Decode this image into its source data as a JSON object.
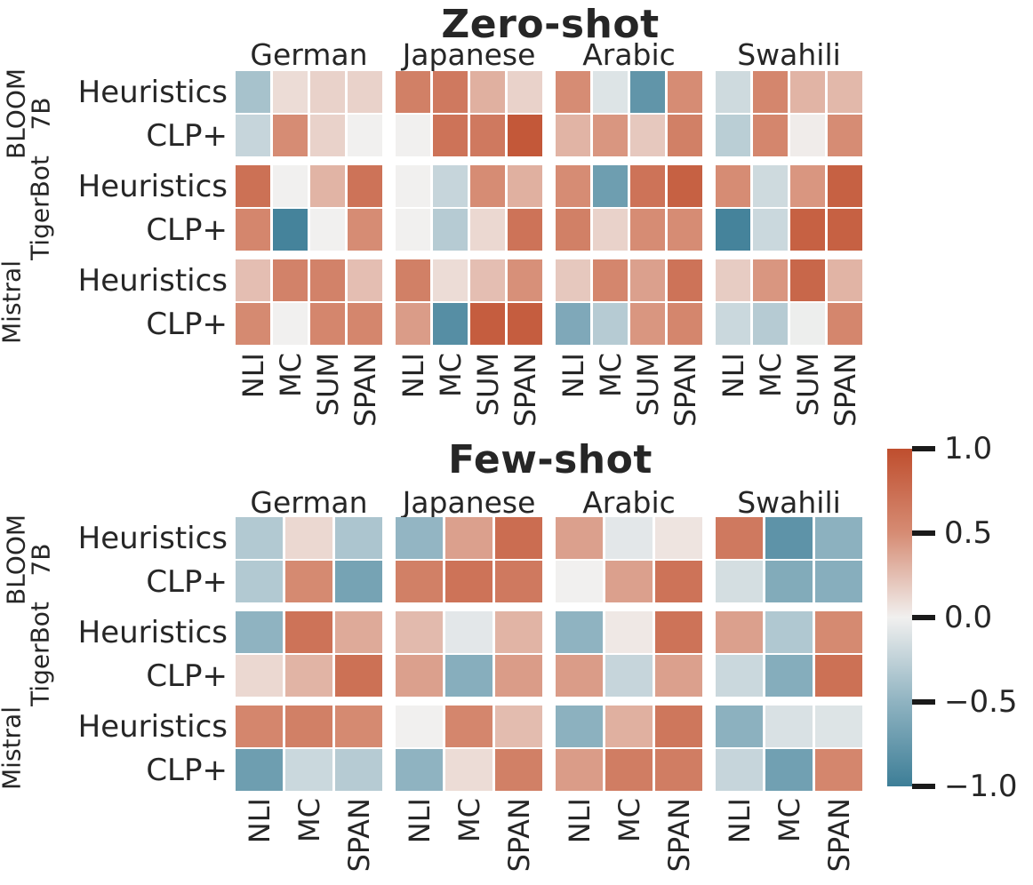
{
  "figure_title": "",
  "colors": {
    "positive_end": "#bf4e2e",
    "positive_half": "#d68c74",
    "midpoint": "#f1f0ef",
    "negative_half": "#8fb3c1",
    "negative_end": "#3d7e97",
    "tick": "#1a1a1a",
    "text": "#262626",
    "background": "#ffffff"
  },
  "models": [
    {
      "name": "BLOOM 7B",
      "label_lines": [
        "BLOOM",
        "7B"
      ]
    },
    {
      "name": "TigerBot",
      "label_lines": [
        "TigerBot"
      ]
    },
    {
      "name": "Mistral",
      "label_lines": [
        "Mistral"
      ]
    }
  ],
  "methods": [
    "Heuristics",
    "CLP+"
  ],
  "colorbar": {
    "vmin": -1.0,
    "vmax": 1.0,
    "tick_values": [
      1.0,
      0.5,
      0.0,
      -0.5,
      -1.0
    ],
    "tick_labels": [
      "1.0",
      "0.5",
      "0.0",
      "−0.5",
      "−1.0"
    ]
  },
  "chart_data": [
    {
      "type": "heatmap",
      "title": "Zero-shot",
      "col_groups": [
        "German",
        "Japanese",
        "Arabic",
        "Swahili"
      ],
      "col_labels": [
        "NLI",
        "MC",
        "SUM",
        "SPAN"
      ],
      "row_groups": [
        "BLOOM 7B",
        "TigerBot",
        "Mistral"
      ],
      "row_labels": [
        "Heuristics",
        "CLP+",
        "Heuristics",
        "CLP+",
        "Heuristics",
        "CLP+"
      ],
      "vmin": -1.0,
      "vmax": 1.0,
      "values": [
        [
          -0.38,
          0.1,
          0.15,
          0.15,
          0.6,
          0.65,
          0.32,
          0.15,
          0.5,
          -0.1,
          -0.78,
          0.5,
          -0.18,
          0.55,
          0.3,
          0.28
        ],
        [
          -0.22,
          0.5,
          0.15,
          0.0,
          0.0,
          0.7,
          0.65,
          0.92,
          0.3,
          0.45,
          0.2,
          0.6,
          -0.28,
          0.55,
          0.02,
          0.5
        ],
        [
          0.72,
          0.0,
          0.3,
          0.7,
          0.0,
          -0.22,
          0.5,
          0.32,
          0.5,
          -0.7,
          0.7,
          0.85,
          0.5,
          -0.18,
          0.45,
          0.85
        ],
        [
          0.55,
          -0.95,
          0.0,
          0.5,
          0.0,
          -0.3,
          0.12,
          0.7,
          0.6,
          0.15,
          0.5,
          0.5,
          -0.95,
          -0.2,
          0.85,
          0.85
        ],
        [
          0.25,
          0.58,
          0.58,
          0.25,
          0.6,
          0.1,
          0.25,
          0.48,
          0.2,
          0.55,
          0.4,
          0.7,
          0.18,
          0.45,
          0.8,
          0.3
        ],
        [
          0.52,
          0.0,
          0.55,
          0.55,
          0.42,
          -0.85,
          0.88,
          0.88,
          -0.6,
          -0.3,
          0.45,
          0.55,
          -0.2,
          -0.3,
          -0.02,
          0.55
        ]
      ]
    },
    {
      "type": "heatmap",
      "title": "Few-shot",
      "col_groups": [
        "German",
        "Japanese",
        "Arabic",
        "Swahili"
      ],
      "col_labels": [
        "NLI",
        "MC",
        "SPAN"
      ],
      "row_groups": [
        "BLOOM 7B",
        "TigerBot",
        "Mistral"
      ],
      "row_labels": [
        "Heuristics",
        "CLP+",
        "Heuristics",
        "CLP+",
        "Heuristics",
        "CLP+"
      ],
      "vmin": -1.0,
      "vmax": 1.0,
      "values": [
        [
          -0.32,
          0.12,
          -0.35,
          -0.48,
          0.4,
          0.75,
          0.4,
          -0.07,
          0.06,
          0.65,
          -0.8,
          -0.52
        ],
        [
          -0.32,
          0.52,
          -0.65,
          0.6,
          0.7,
          0.65,
          0.0,
          0.4,
          0.7,
          -0.15,
          -0.58,
          -0.55
        ],
        [
          -0.5,
          0.7,
          0.35,
          0.27,
          -0.07,
          0.3,
          -0.5,
          0.04,
          0.7,
          0.4,
          -0.33,
          0.52
        ],
        [
          0.12,
          0.3,
          0.72,
          0.4,
          -0.55,
          0.42,
          0.42,
          -0.22,
          0.4,
          -0.2,
          -0.56,
          0.72
        ],
        [
          0.55,
          0.6,
          0.52,
          0.0,
          0.55,
          0.26,
          -0.52,
          0.32,
          0.67,
          -0.52,
          -0.12,
          -0.1
        ],
        [
          -0.7,
          -0.2,
          -0.3,
          -0.5,
          0.1,
          0.6,
          0.42,
          0.62,
          0.62,
          -0.22,
          -0.68,
          0.55
        ]
      ]
    }
  ]
}
